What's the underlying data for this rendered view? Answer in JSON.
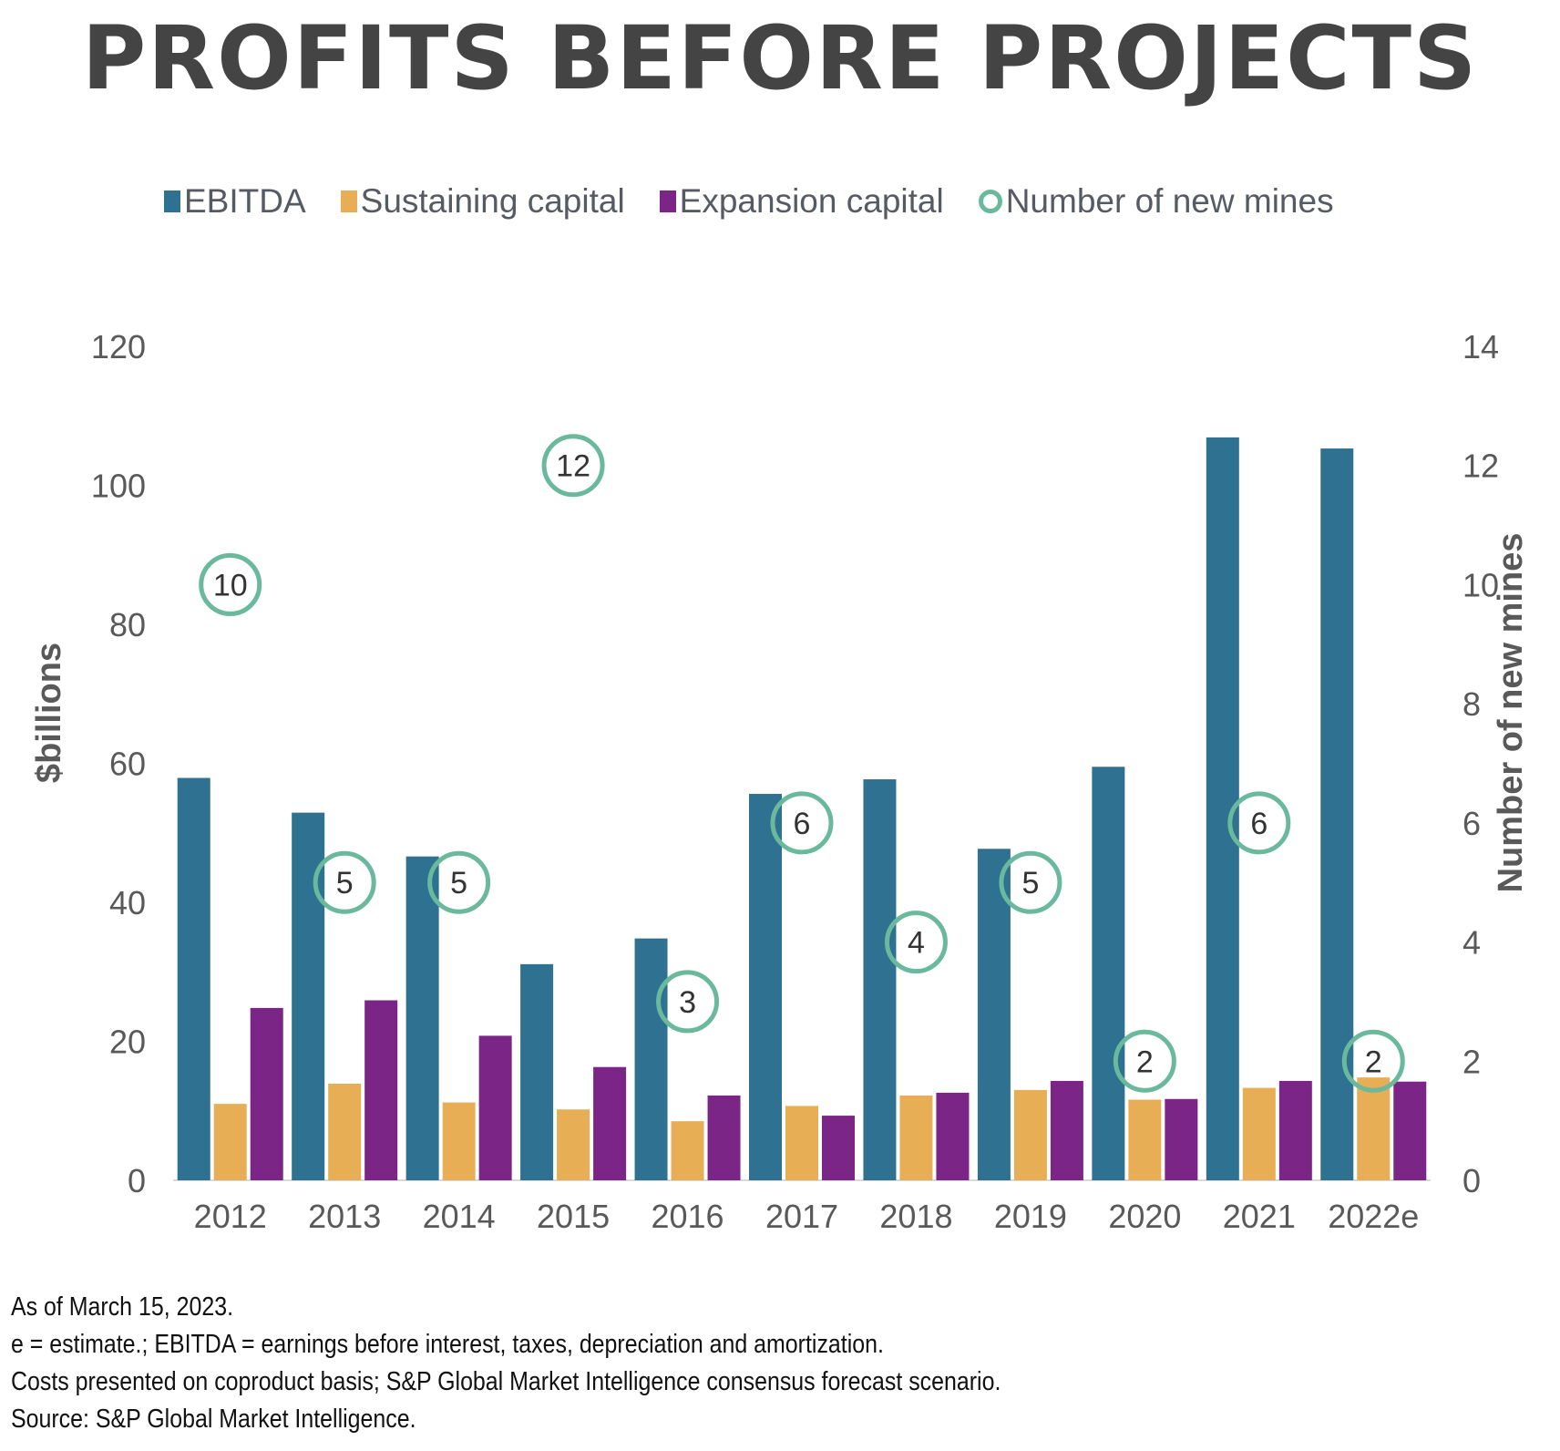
{
  "title": "PROFITS BEFORE PROJECTS",
  "legend": [
    {
      "label": "EBITDA",
      "color": "#2e7191",
      "marker": "square"
    },
    {
      "label": "Sustaining capital",
      "color": "#e8ae55",
      "marker": "square"
    },
    {
      "label": "Expansion capital",
      "color": "#7b2687",
      "marker": "square"
    },
    {
      "label": "Number of new mines",
      "color": "#6ab99c",
      "marker": "circle"
    }
  ],
  "notes": [
    "As of March 15, 2023.",
    "e = estimate.; EBITDA = earnings before interest, taxes, depreciation and amortization.",
    "Costs presented on coproduct basis; S&P Global Market Intelligence consensus forecast scenario.",
    "Source: S&P Global Market Intelligence."
  ],
  "chart_data": {
    "type": "bar",
    "title": "PROFITS BEFORE PROJECTS",
    "categories": [
      "2012",
      "2013",
      "2014",
      "2015",
      "2016",
      "2017",
      "2018",
      "2019",
      "2020",
      "2021",
      "2022e"
    ],
    "series": [
      {
        "name": "EBITDA",
        "axis": "left",
        "color": "#2e7191",
        "values": [
          57.9,
          52.9,
          46.6,
          31.1,
          34.8,
          55.6,
          57.7,
          47.7,
          59.5,
          106.9,
          105.3
        ]
      },
      {
        "name": "Sustaining capital",
        "axis": "left",
        "color": "#e8ae55",
        "values": [
          11.0,
          13.9,
          11.2,
          10.2,
          8.5,
          10.7,
          12.2,
          13.0,
          11.6,
          13.3,
          14.8
        ]
      },
      {
        "name": "Expansion capital",
        "axis": "left",
        "color": "#7b2687",
        "values": [
          24.8,
          25.9,
          20.8,
          16.3,
          12.2,
          9.3,
          12.6,
          14.3,
          11.7,
          14.3,
          14.2
        ]
      },
      {
        "name": "Number of new mines",
        "axis": "right",
        "type": "scatter",
        "color": "#6ab99c",
        "values": [
          10,
          5,
          5,
          12,
          3,
          6,
          4,
          5,
          2,
          6,
          2
        ]
      }
    ],
    "ylabel": "$billions",
    "ylim": [
      0,
      120
    ],
    "yticks": [
      "0",
      "20",
      "40",
      "60",
      "80",
      "100",
      "120"
    ],
    "y2label": "Number of new mines",
    "y2lim": [
      0,
      14
    ],
    "y2ticks": [
      "0",
      "2",
      "4",
      "6",
      "8",
      "10",
      "12",
      "14"
    ],
    "grid": false,
    "legend_position": "top"
  }
}
